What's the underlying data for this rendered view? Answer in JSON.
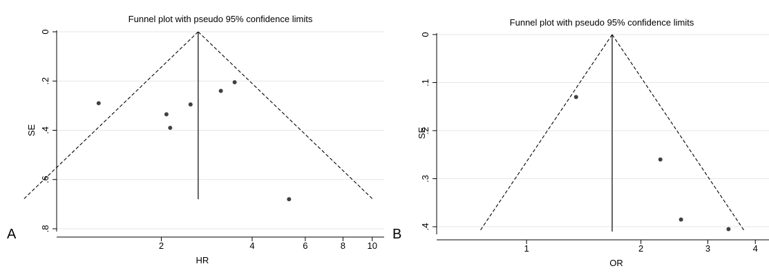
{
  "chart_data": [
    {
      "type": "scatter",
      "panel_label": "A",
      "title": "Funnel plot with pseudo 95% confidence limits",
      "xlabel": "HR",
      "ylabel": "SE",
      "x_scale": "log",
      "y_reversed": true,
      "xlim": [
        0.9,
        10.5
      ],
      "ylim": [
        0,
        0.8
      ],
      "xticks": [
        {
          "value": 2,
          "label": "2"
        },
        {
          "value": 4,
          "label": "4"
        },
        {
          "value": 6,
          "label": "6"
        },
        {
          "value": 8,
          "label": "8"
        },
        {
          "value": 10,
          "label": "10"
        }
      ],
      "yticks": [
        {
          "value": 0,
          "label": "0"
        },
        {
          "value": 0.2,
          "label": ".2"
        },
        {
          "value": 0.4,
          "label": ".4"
        },
        {
          "value": 0.6,
          "label": ".6"
        },
        {
          "value": 0.8,
          "label": ".8"
        }
      ],
      "grid": true,
      "pooled_estimate": 2.65,
      "se_max": 0.68,
      "points": [
        {
          "x": 1.24,
          "y": 0.29
        },
        {
          "x": 2.08,
          "y": 0.335
        },
        {
          "x": 2.14,
          "y": 0.39
        },
        {
          "x": 2.5,
          "y": 0.295
        },
        {
          "x": 3.15,
          "y": 0.24
        },
        {
          "x": 3.5,
          "y": 0.205
        },
        {
          "x": 5.3,
          "y": 0.68
        }
      ]
    },
    {
      "type": "scatter",
      "panel_label": "B",
      "title": "Funnel plot with pseudo 95% confidence limits",
      "xlabel": "OR",
      "ylabel": "SE",
      "x_scale": "log",
      "y_reversed": true,
      "xlim": [
        0.58,
        4.15
      ],
      "ylim": [
        0,
        0.41
      ],
      "xticks": [
        {
          "value": 1,
          "label": "1"
        },
        {
          "value": 2,
          "label": "2"
        },
        {
          "value": 3,
          "label": "3"
        },
        {
          "value": 4,
          "label": "4"
        }
      ],
      "yticks": [
        {
          "value": 0,
          "label": "0"
        },
        {
          "value": 0.1,
          "label": ".1"
        },
        {
          "value": 0.2,
          "label": ".2"
        },
        {
          "value": 0.3,
          "label": ".3"
        },
        {
          "value": 0.4,
          "label": ".4"
        }
      ],
      "grid": true,
      "pooled_estimate": 1.68,
      "se_max": 0.41,
      "points": [
        {
          "x": 1.35,
          "y": 0.13
        },
        {
          "x": 2.25,
          "y": 0.26
        },
        {
          "x": 2.55,
          "y": 0.385
        },
        {
          "x": 3.4,
          "y": 0.405
        }
      ]
    }
  ]
}
